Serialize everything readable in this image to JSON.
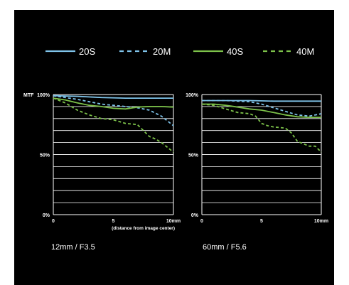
{
  "colors": {
    "s20": "#7fc4ea",
    "m20": "#7fc4ea",
    "s40": "#7dc24a",
    "m40": "#7dc24a",
    "grid": "#ffffff",
    "text": "#ffffff",
    "background": "#000000"
  },
  "legend": {
    "items": [
      {
        "label": "20S",
        "color": "#7fc4ea",
        "dashed": false
      },
      {
        "label": "20M",
        "color": "#7fc4ea",
        "dashed": true
      },
      {
        "label": "40S",
        "color": "#7dc24a",
        "dashed": false
      },
      {
        "label": "40M",
        "color": "#7dc24a",
        "dashed": true
      }
    ]
  },
  "chart_data": [
    {
      "type": "line",
      "caption": "12mm / F3.5",
      "ylabel": "MTF",
      "xlabel": "(distance from image center)",
      "ylim": [
        0,
        100
      ],
      "xlim": [
        0,
        10
      ],
      "xticks": [
        "0",
        "5",
        "10mm"
      ],
      "yticks": [
        "100%",
        "50%",
        "0%"
      ],
      "grid": true,
      "series": [
        {
          "name": "20S",
          "dashed": false,
          "x": [
            0,
            2,
            4,
            6,
            8,
            10
          ],
          "y": [
            99,
            98.5,
            97.5,
            97,
            97,
            97
          ]
        },
        {
          "name": "20M",
          "dashed": true,
          "x": [
            0,
            2,
            4,
            6,
            7,
            8,
            9,
            10
          ],
          "y": [
            99,
            96,
            92,
            90,
            89,
            87,
            82,
            74
          ]
        },
        {
          "name": "40S",
          "dashed": false,
          "x": [
            0,
            1,
            2,
            3,
            4,
            5,
            6,
            7,
            8,
            9,
            10
          ],
          "y": [
            97,
            95.5,
            93,
            91,
            90,
            88.5,
            88,
            89.5,
            90,
            90,
            89.5
          ]
        },
        {
          "name": "40M",
          "dashed": true,
          "x": [
            0,
            1,
            2,
            3,
            4,
            5,
            6,
            7,
            7.5,
            8,
            8.5,
            9,
            10
          ],
          "y": [
            97,
            93,
            87,
            83,
            80,
            79,
            76,
            75,
            70,
            65,
            63,
            60,
            52
          ]
        }
      ]
    },
    {
      "type": "line",
      "caption": "60mm / F5.6",
      "ylabel": "",
      "xlabel": "",
      "ylim": [
        0,
        100
      ],
      "xlim": [
        0,
        10
      ],
      "xticks": [
        "0",
        "5",
        "10mm"
      ],
      "yticks": [
        "100%",
        "50%",
        "0%"
      ],
      "grid": true,
      "series": [
        {
          "name": "20S",
          "dashed": false,
          "x": [
            0,
            2,
            4,
            6,
            8,
            10
          ],
          "y": [
            95,
            95,
            95,
            94.5,
            94.5,
            94.5
          ]
        },
        {
          "name": "20M",
          "dashed": true,
          "x": [
            0,
            2,
            4,
            5,
            6,
            7,
            8,
            9,
            10
          ],
          "y": [
            95,
            95,
            94,
            92,
            89,
            86,
            83,
            82,
            84
          ]
        },
        {
          "name": "40S",
          "dashed": false,
          "x": [
            0,
            1,
            2,
            3,
            4,
            5,
            6,
            7,
            8,
            9,
            10
          ],
          "y": [
            92,
            92,
            91,
            89.5,
            88,
            87,
            85,
            83,
            81.5,
            81,
            81
          ]
        },
        {
          "name": "40M",
          "dashed": true,
          "x": [
            0,
            1,
            2,
            3,
            4,
            4.5,
            5,
            5.5,
            6,
            7,
            7.5,
            8,
            9,
            9.5,
            10
          ],
          "y": [
            92,
            91,
            88,
            85,
            84,
            82,
            76,
            74,
            73,
            72,
            68,
            61,
            57,
            57,
            52
          ]
        }
      ]
    }
  ]
}
